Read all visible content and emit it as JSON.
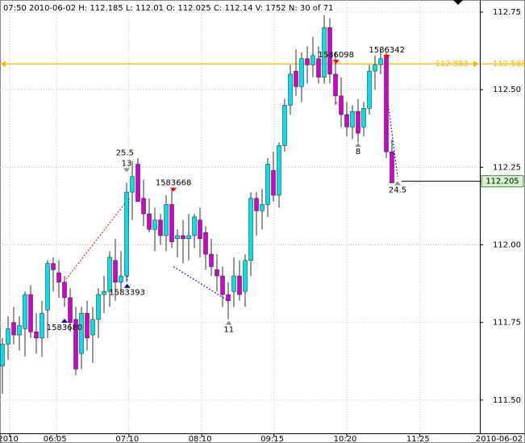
{
  "chart_data": {
    "type": "candlestick",
    "title": "07:50 2010-06-02 H: 112.185 L: 112.01 O: 112.025 C: 112.14 V: 1752 N: 30 of 71",
    "date_label": "2010-06-02",
    "up_color": "#00e0ee",
    "down_color": "#d000d0",
    "grid": true,
    "xlim": [
      -0.43,
      84.57
    ],
    "xticks": [
      {
        "value": 1.3,
        "label": "2010"
      },
      {
        "value": 9.6,
        "label": "06:05"
      },
      {
        "value": 22.4,
        "label": "07:10"
      },
      {
        "value": 35.3,
        "label": "08:10"
      },
      {
        "value": 48.1,
        "label": "09:15"
      },
      {
        "value": 61,
        "label": "10:20"
      },
      {
        "value": 73.9,
        "label": "11:25"
      }
    ],
    "ylim": [
      111.393,
      112.789
    ],
    "yticks": [
      {
        "value": 111.5,
        "label": "111.50"
      },
      111.75,
      {
        "value": 112,
        "label": "112.00"
      },
      112.25,
      {
        "value": 112.5,
        "label": "112.50"
      },
      112.75
    ],
    "open": [
      111.61,
      111.68,
      111.75,
      111.71,
      111.73,
      111.84,
      111.72,
      111.7,
      111.79,
      111.94,
      111.91,
      111.88,
      111.83,
      111.76,
      111.65,
      111.78,
      111.71,
      111.76,
      111.84,
      111.85,
      111.95,
      111.88,
      111.9,
      112.17,
      112.26,
      112.15,
      112.1,
      112.05,
      112.08,
      112.03,
      112.13,
      112.02,
      112.03,
      112.02,
      112.03,
      112.08,
      112.04,
      111.97,
      111.92,
      111.9,
      111.84,
      111.85,
      111.9,
      111.85,
      111.95,
      112.15,
      112.11,
      112.13,
      112.24,
      112.16,
      112.32,
      112.45,
      112.56,
      112.51,
      112.6,
      112.58,
      112.6,
      112.54,
      112.7,
      112.55,
      112.48,
      112.42,
      112.38,
      112.43,
      112.38,
      112.44,
      112.56,
      112.58,
      112.61,
      112.3
    ],
    "high": [
      111.7,
      111.77,
      111.8,
      111.77,
      111.85,
      111.87,
      111.78,
      111.82,
      111.95,
      111.96,
      111.95,
      111.9,
      111.86,
      111.8,
      111.8,
      111.82,
      111.8,
      111.86,
      111.9,
      111.98,
      112.02,
      111.98,
      112.2,
      112.27,
      112.28,
      112.21,
      112.15,
      112.12,
      112.1,
      112.16,
      112.18,
      112.05,
      112.08,
      112.1,
      112.1,
      112.12,
      112.06,
      112.02,
      111.97,
      111.93,
      111.88,
      111.96,
      111.95,
      111.97,
      112.17,
      112.17,
      112.18,
      112.28,
      112.3,
      112.33,
      112.47,
      112.58,
      112.63,
      112.62,
      112.64,
      112.67,
      112.64,
      112.74,
      112.73,
      112.62,
      112.54,
      112.46,
      112.45,
      112.47,
      112.46,
      112.58,
      112.61,
      112.63,
      112.62,
      112.34
    ],
    "low": [
      111.52,
      111.63,
      111.68,
      111.66,
      111.64,
      111.7,
      111.65,
      111.64,
      111.7,
      111.85,
      111.83,
      111.8,
      111.72,
      111.58,
      111.6,
      111.66,
      111.62,
      111.7,
      111.78,
      111.8,
      111.82,
      111.85,
      111.88,
      112.08,
      112.15,
      112.06,
      112.04,
      111.98,
      112.0,
      111.98,
      111.99,
      111.96,
      111.94,
      111.95,
      111.99,
      111.96,
      111.92,
      111.9,
      111.85,
      111.8,
      111.76,
      111.8,
      111.82,
      111.8,
      111.9,
      112.03,
      112.05,
      112.09,
      112.14,
      112.12,
      112.3,
      112.42,
      112.48,
      112.46,
      112.52,
      112.54,
      112.52,
      112.52,
      112.52,
      112.45,
      112.38,
      112.35,
      112.34,
      112.33,
      112.35,
      112.42,
      112.5,
      112.55,
      112.28,
      112.2
    ],
    "close": [
      111.68,
      111.73,
      111.71,
      111.74,
      111.84,
      111.72,
      111.7,
      111.78,
      111.94,
      111.92,
      111.88,
      111.83,
      111.75,
      111.6,
      111.78,
      111.7,
      111.76,
      111.84,
      111.85,
      111.96,
      111.88,
      111.9,
      112.17,
      112.22,
      112.14,
      112.1,
      112.05,
      112.08,
      112.03,
      112.13,
      112.01,
      112.03,
      112.02,
      112.03,
      112.09,
      112.02,
      111.97,
      111.93,
      111.9,
      111.84,
      111.82,
      111.9,
      111.84,
      111.95,
      112.15,
      112.11,
      112.13,
      112.26,
      112.16,
      112.32,
      112.45,
      112.55,
      112.51,
      112.6,
      112.58,
      112.61,
      112.54,
      112.7,
      112.55,
      112.48,
      112.42,
      112.38,
      112.43,
      112.36,
      112.44,
      112.56,
      112.58,
      112.6,
      112.3,
      112.2
    ],
    "levels": [
      {
        "value": 112.583,
        "color": "#ffb400"
      },
      {
        "value": 112.205,
        "color": "#000000"
      }
    ],
    "zigzag": [
      {
        "color": "#ff2020",
        "points": [
          [
            11.3,
            111.89
          ],
          [
            22.4,
            112.15
          ]
        ]
      },
      {
        "color": "#2020ff",
        "points": [
          [
            22.4,
            112.15
          ],
          [
            22.1,
            111.88
          ]
        ]
      },
      {
        "color": "#2020ff",
        "points": [
          [
            30.3,
            111.93
          ],
          [
            40.0,
            111.82
          ]
        ]
      },
      {
        "color": "#ff2020",
        "points": [
          [
            59.1,
            112.46
          ],
          [
            59.4,
            112.45
          ]
        ]
      },
      {
        "color": "#2020ff",
        "points": [
          [
            68.3,
            112.46
          ],
          [
            70.0,
            112.22
          ]
        ]
      }
    ],
    "annotations": [
      {
        "text": "25.5",
        "x": 21.7,
        "y": 112.297
      },
      {
        "text": "13",
        "x": 22.0,
        "y": 112.263,
        "marker": "down",
        "marker_color": "#909090"
      },
      {
        "text": "1583668",
        "x": 30.3,
        "y": 112.2,
        "marker": "down",
        "marker_color": "#ff0000"
      },
      {
        "text": "1586098",
        "x": 59.1,
        "y": 112.612,
        "marker": "down",
        "marker_color": "#ff0000"
      },
      {
        "text": "1586342",
        "x": 68.1,
        "y": 112.628,
        "marker": "down",
        "marker_color": "#ff0000"
      },
      {
        "text": "8",
        "x": 63.0,
        "y": 112.3,
        "marker": "up",
        "marker_color": "#909090"
      },
      {
        "text": "11",
        "x": 40.1,
        "y": 111.727,
        "marker": "up",
        "marker_color": "#909090"
      },
      {
        "text": "24.5",
        "x": 70.0,
        "y": 112.177,
        "marker": "up",
        "marker_color": "#909090"
      },
      {
        "text": "1583393",
        "x": 22.1,
        "y": 111.846,
        "marker": "up",
        "marker_color": "#0000c0"
      },
      {
        "text": "1583680",
        "x": 11.0,
        "y": 111.734,
        "marker": "up",
        "marker_color": "#0000c0"
      }
    ]
  }
}
